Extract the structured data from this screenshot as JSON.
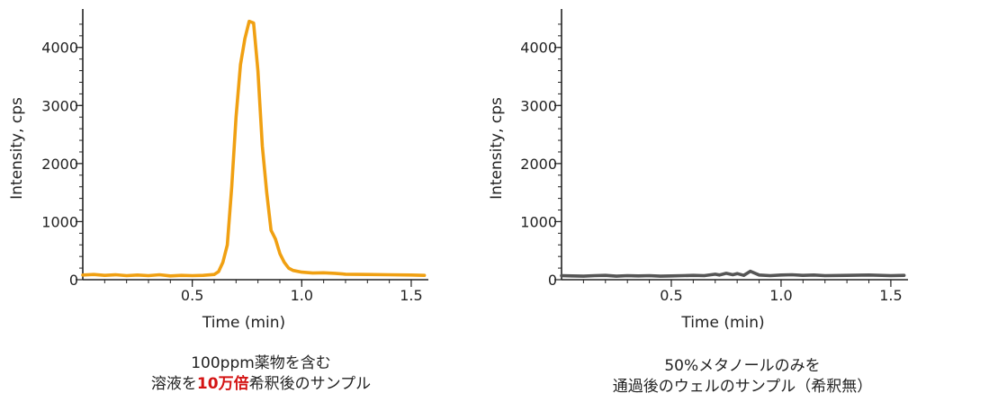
{
  "chart_data": [
    {
      "type": "line",
      "xlabel": "Time (min)",
      "ylabel": "Intensity, cps",
      "xlim": [
        0,
        1.57
      ],
      "ylim": [
        0,
        4600
      ],
      "xticks": [
        "0.5",
        "1.0",
        "1.5"
      ],
      "xtick_values": [
        0.5,
        1.0,
        1.5
      ],
      "yticks": [
        "0",
        "1000",
        "2000",
        "3000",
        "4000"
      ],
      "ytick_values": [
        0,
        1000,
        2000,
        3000,
        4000
      ],
      "color": "#f0a012",
      "series": [
        {
          "x": [
            0.0,
            0.05,
            0.1,
            0.15,
            0.2,
            0.25,
            0.3,
            0.35,
            0.4,
            0.45,
            0.5,
            0.55,
            0.6,
            0.62,
            0.64,
            0.66,
            0.68,
            0.7,
            0.72,
            0.74,
            0.76,
            0.78,
            0.8,
            0.82,
            0.84,
            0.86,
            0.88,
            0.9,
            0.92,
            0.94,
            0.96,
            1.0,
            1.05,
            1.1,
            1.15,
            1.2,
            1.3,
            1.4,
            1.5,
            1.56
          ],
          "values": [
            80,
            90,
            75,
            85,
            70,
            80,
            70,
            85,
            65,
            75,
            70,
            75,
            90,
            140,
            300,
            600,
            1600,
            2800,
            3700,
            4150,
            4450,
            4420,
            3600,
            2300,
            1500,
            850,
            700,
            450,
            300,
            200,
            160,
            130,
            115,
            120,
            110,
            95,
            90,
            85,
            80,
            75
          ]
        }
      ]
    },
    {
      "type": "line",
      "xlabel": "Time (min)",
      "ylabel": "Intensity, cps",
      "xlim": [
        0,
        1.57
      ],
      "ylim": [
        0,
        4600
      ],
      "xticks": [
        "0.5",
        "1.0",
        "1.5"
      ],
      "xtick_values": [
        0.5,
        1.0,
        1.5
      ],
      "yticks": [
        "0",
        "1000",
        "2000",
        "3000",
        "4000"
      ],
      "ytick_values": [
        0,
        1000,
        2000,
        3000,
        4000
      ],
      "color": "#555555",
      "series": [
        {
          "x": [
            0.0,
            0.05,
            0.1,
            0.15,
            0.2,
            0.25,
            0.3,
            0.35,
            0.4,
            0.45,
            0.5,
            0.55,
            0.6,
            0.65,
            0.7,
            0.72,
            0.75,
            0.78,
            0.8,
            0.83,
            0.86,
            0.9,
            0.95,
            1.0,
            1.05,
            1.1,
            1.15,
            1.2,
            1.3,
            1.4,
            1.5,
            1.56
          ],
          "values": [
            70,
            65,
            60,
            70,
            75,
            60,
            70,
            65,
            70,
            60,
            65,
            70,
            75,
            70,
            95,
            80,
            110,
            85,
            105,
            75,
            145,
            80,
            70,
            80,
            85,
            75,
            80,
            70,
            75,
            80,
            70,
            75
          ]
        }
      ]
    }
  ],
  "captions": {
    "left": {
      "line1": "100ppm薬物を含む",
      "line2_pre": "溶液を",
      "line2_em": "10万倍",
      "line2_post": "希釈後のサンプル"
    },
    "right": {
      "line1": "50%メタノールのみを",
      "line2": "通過後のウェルのサンプル（希釈無）"
    }
  }
}
